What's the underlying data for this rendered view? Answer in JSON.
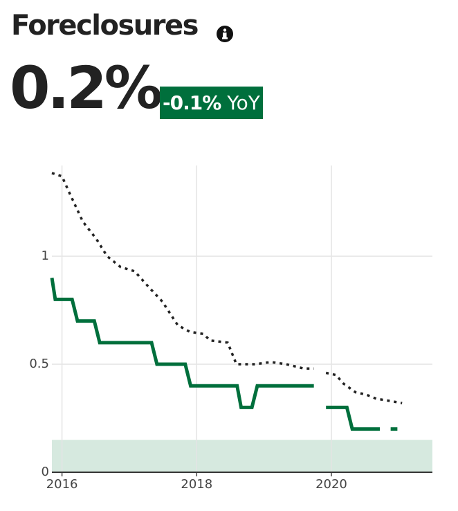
{
  "header": {
    "title": "Foreclosures",
    "value": "0.2%",
    "change": "-0.1%",
    "change_suffix": "YoY"
  },
  "chart_data": {
    "type": "line",
    "xlim": [
      2015.85,
      2021.5
    ],
    "xticks": [
      2016,
      2018,
      2020
    ],
    "ylim": [
      0,
      1.42
    ],
    "yticks": [
      0,
      0.5,
      1
    ],
    "grid": true,
    "band": {
      "range": [
        0,
        0.15
      ],
      "color": "#d6e9df"
    },
    "series": [
      {
        "color": "#222222",
        "dash": true,
        "x": [
          2015.85,
          2016,
          2016.1,
          2016.31,
          2016.51,
          2016.67,
          2016.87,
          2017.08,
          2017.28,
          2017.49,
          2017.72,
          2017.9,
          2018.1,
          2018.2,
          2018.46,
          2018.59,
          2018.87,
          2019.1,
          2019.33,
          2019.59,
          2019.74,
          2019.83,
          2019.92,
          2020.07,
          2020.18,
          2020.36,
          2020.51,
          2020.67,
          2020.87,
          2021.05
        ],
        "values": [
          1.385,
          1.37,
          1.3,
          1.16,
          1.08,
          1.0,
          0.95,
          0.93,
          0.86,
          0.79,
          0.68,
          0.65,
          0.64,
          0.61,
          0.6,
          0.5,
          0.5,
          0.51,
          0.5,
          0.48,
          0.48,
          null,
          0.46,
          0.45,
          0.41,
          0.37,
          0.36,
          0.34,
          0.33,
          0.32
        ]
      },
      {
        "color": "#006f3c",
        "dash": false,
        "x": [
          2015.85,
          2015.9,
          2016.15,
          2016.23,
          2016.48,
          2016.56,
          2017.33,
          2017.41,
          2017.83,
          2017.91,
          2018.6,
          2018.66,
          2018.82,
          2018.9,
          2019.74,
          2019.83,
          2019.92,
          2020.23,
          2020.31,
          2020.72,
          2020.8,
          2020.88,
          2020.98
        ],
        "values": [
          0.9,
          0.8,
          0.8,
          0.7,
          0.7,
          0.6,
          0.6,
          0.5,
          0.5,
          0.4,
          0.4,
          0.3,
          0.3,
          0.4,
          0.4,
          null,
          0.3,
          0.3,
          0.2,
          0.2,
          null,
          0.2,
          0.2
        ]
      }
    ]
  }
}
